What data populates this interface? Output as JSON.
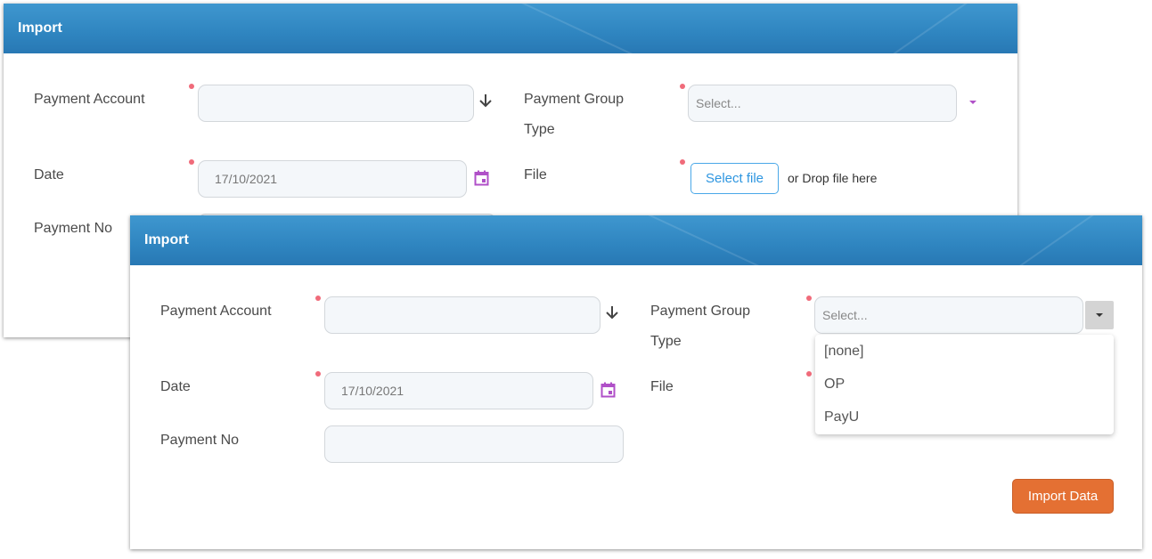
{
  "back_dialog": {
    "title": "Import",
    "payment_account": {
      "label": "Payment Account",
      "value": ""
    },
    "payment_group_type": {
      "label_line1": "Payment Group",
      "label_line2": "Type",
      "placeholder": "Select..."
    },
    "date": {
      "label": "Date",
      "value": "17/10/2021"
    },
    "file": {
      "label": "File",
      "button": "Select file",
      "drop_text": "or Drop file here"
    },
    "payment_no": {
      "label": "Payment No",
      "value": ""
    }
  },
  "front_dialog": {
    "title": "Import",
    "payment_account": {
      "label": "Payment Account",
      "value": ""
    },
    "payment_group_type": {
      "label_line1": "Payment Group",
      "label_line2": "Type",
      "placeholder": "Select...",
      "options": [
        "[none]",
        "OP",
        "PayU"
      ]
    },
    "date": {
      "label": "Date",
      "value": "17/10/2021"
    },
    "file": {
      "label": "File"
    },
    "payment_no": {
      "label": "Payment No",
      "value": ""
    },
    "import_button": "Import Data"
  },
  "colors": {
    "header": "#3a8fc9",
    "required_dot": "#f06b7a",
    "accent_orange": "#e47033",
    "calendar": "#b050c8",
    "file_button": "#2e96e0"
  },
  "icons": {
    "account_lookup": "arrow-down-icon",
    "date_picker": "calendar-icon",
    "dropdown": "caret-down-icon"
  }
}
